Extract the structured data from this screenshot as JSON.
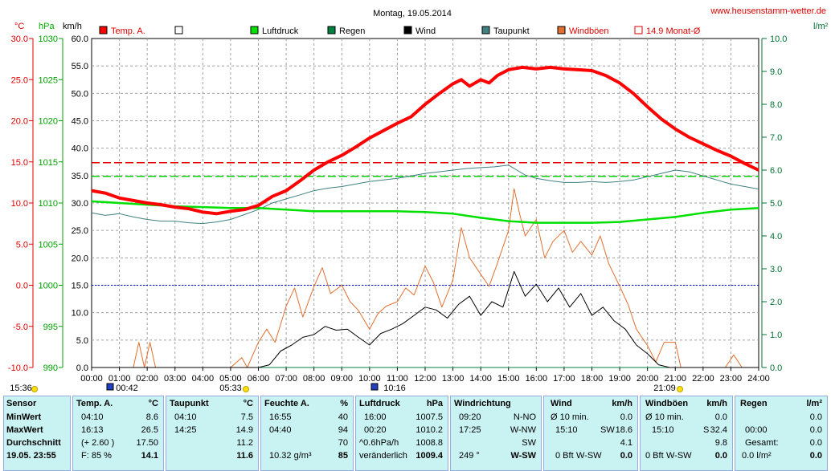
{
  "header": {
    "title": "Montag, 19.05.2014",
    "site": "www.heusenstamm-wetter.de"
  },
  "units": {
    "temp": "°C",
    "pressure": "hPa",
    "wind": "km/h",
    "rain": "l/m²"
  },
  "legend": [
    {
      "label": "Temp. A.",
      "color": "#ff0000"
    },
    {
      "label": "",
      "color": "#ffffff"
    },
    {
      "label": "Luftdruck",
      "color": "#00e000"
    },
    {
      "label": "Regen",
      "color": "#008040"
    },
    {
      "label": "Wind",
      "color": "#000000"
    },
    {
      "label": "Taupunkt",
      "color": "#408080"
    },
    {
      "label": "Windböen",
      "color": "#e07030"
    },
    {
      "label": "14.9 Monat-Ø",
      "color": "#e00000"
    }
  ],
  "time_marks": {
    "sunrise": "05:33",
    "sunset": "21:09",
    "left_time": "15:36",
    "moon1": "00:42",
    "moon2": "10:16"
  },
  "chart_data": {
    "type": "line",
    "x_label_ticks": [
      "00:00",
      "01:00",
      "02:00",
      "03:00",
      "04:00",
      "05:00",
      "06:00",
      "07:00",
      "08:00",
      "09:00",
      "10:00",
      "11:00",
      "12:00",
      "13:00",
      "14:00",
      "15:00",
      "16:00",
      "17:00",
      "18:00",
      "19:00",
      "20:00",
      "21:00",
      "22:00",
      "23:00",
      "24:00"
    ],
    "xlim": [
      0,
      24
    ],
    "axes": {
      "temp_ticks": [
        "30.0",
        "25.0",
        "20.0",
        "15.0",
        "10.0",
        "5.0",
        "0.0",
        "-5.0",
        "-10.0"
      ],
      "pressure_ticks": [
        "1030",
        "1025",
        "1020",
        "1015",
        "1010",
        "1005",
        "1000",
        "995",
        "990"
      ],
      "wind_ticks": [
        "60.0",
        "55.0",
        "50.0",
        "45.0",
        "40.0",
        "35.0",
        "30.0",
        "25.0",
        "20.0",
        "15.0",
        "10.0",
        "5.0",
        "0.0"
      ],
      "rain_ticks": [
        "10.0",
        "9.0",
        "8.0",
        "7.0",
        "6.0",
        "5.0",
        "4.0",
        "3.0",
        "2.0",
        "1.0",
        "0.0"
      ],
      "temp_ylim": [
        -10,
        30
      ],
      "pressure_ylim": [
        990,
        1030
      ],
      "wind_ylim": [
        0,
        60
      ],
      "rain_ylim": [
        0,
        10
      ]
    },
    "reference_lines": {
      "month_avg_temp": 14.9,
      "pressure_ref": 1013.25,
      "zero_temp": 0.0
    },
    "series": [
      {
        "name": "Temp. A.",
        "axis": "temp",
        "color": "#ff0000",
        "x": [
          0,
          0.5,
          1,
          1.5,
          2,
          2.5,
          3,
          3.5,
          4,
          4.5,
          5,
          5.5,
          6,
          6.5,
          7,
          7.5,
          8,
          8.5,
          9,
          9.5,
          10,
          10.5,
          11,
          11.5,
          12,
          12.5,
          13,
          13.3,
          13.6,
          14,
          14.3,
          14.6,
          15,
          15.5,
          16,
          16.5,
          17,
          17.5,
          18,
          18.5,
          19,
          19.5,
          20,
          20.5,
          21,
          21.5,
          22,
          22.5,
          23,
          23.5,
          24
        ],
        "y": [
          11.5,
          11.2,
          10.6,
          10.3,
          10.0,
          9.8,
          9.5,
          9.3,
          8.9,
          8.7,
          9.0,
          9.2,
          9.7,
          10.8,
          11.5,
          12.7,
          14.0,
          15.0,
          15.8,
          16.8,
          17.9,
          18.8,
          19.7,
          20.5,
          22.0,
          23.3,
          24.5,
          25.0,
          24.2,
          25.0,
          24.6,
          25.5,
          26.2,
          26.5,
          26.3,
          26.5,
          26.3,
          26.2,
          26.1,
          25.5,
          24.6,
          23.3,
          21.7,
          20.2,
          19.0,
          18.0,
          17.2,
          16.4,
          15.7,
          14.8,
          14.0
        ]
      },
      {
        "name": "Taupunkt",
        "axis": "temp",
        "color": "#408080",
        "x": [
          0,
          0.5,
          1,
          1.5,
          2,
          2.5,
          3,
          3.5,
          4,
          4.5,
          5,
          5.5,
          6,
          6.5,
          7,
          7.5,
          8,
          8.5,
          9,
          9.5,
          10,
          10.5,
          11,
          11.5,
          12,
          12.5,
          13,
          13.5,
          14,
          14.5,
          15,
          15.3,
          15.6,
          16,
          16.5,
          17,
          17.5,
          18,
          18.5,
          19,
          19.5,
          20,
          20.5,
          21,
          21.5,
          22,
          22.5,
          23,
          23.5,
          24
        ],
        "y": [
          8.8,
          8.5,
          8.7,
          8.3,
          8.0,
          7.8,
          7.8,
          7.6,
          7.5,
          7.7,
          8.0,
          8.6,
          9.2,
          10.0,
          10.5,
          11.0,
          11.5,
          11.8,
          12.0,
          12.3,
          12.6,
          12.8,
          13.0,
          13.3,
          13.6,
          13.8,
          14.0,
          14.2,
          14.3,
          14.4,
          14.6,
          14.0,
          13.4,
          13.0,
          12.7,
          12.5,
          12.5,
          12.6,
          12.5,
          12.6,
          12.8,
          13.2,
          13.6,
          14.0,
          13.8,
          13.3,
          12.8,
          12.3,
          12.0,
          11.7
        ]
      },
      {
        "name": "Luftdruck",
        "axis": "pressure",
        "color": "#00e000",
        "x": [
          0,
          1,
          2,
          3,
          4,
          5,
          6,
          7,
          8,
          9,
          10,
          11,
          12,
          13,
          14,
          15,
          16,
          17,
          18,
          19,
          20,
          21,
          22,
          23,
          24
        ],
        "y": [
          1010.2,
          1010.0,
          1009.8,
          1009.6,
          1009.5,
          1009.4,
          1009.4,
          1009.2,
          1009.0,
          1009.0,
          1009.0,
          1009.0,
          1008.9,
          1008.7,
          1008.2,
          1007.8,
          1007.6,
          1007.6,
          1007.6,
          1007.7,
          1008.0,
          1008.3,
          1008.8,
          1009.2,
          1009.4
        ]
      },
      {
        "name": "Windböen",
        "axis": "wind",
        "color": "#e07030",
        "x": [
          0,
          1,
          1.5,
          1.7,
          1.9,
          2.1,
          2.3,
          2.5,
          5,
          5.4,
          5.6,
          6,
          6.3,
          6.6,
          7,
          7.3,
          7.6,
          8,
          8.3,
          8.6,
          9,
          9.3,
          9.6,
          10,
          10.3,
          10.6,
          11,
          11.3,
          11.6,
          12,
          12.3,
          12.6,
          13,
          13.3,
          13.6,
          14,
          14.3,
          14.6,
          15,
          15.2,
          15.4,
          15.6,
          16,
          16.3,
          16.6,
          17,
          17.3,
          17.6,
          18,
          18.3,
          18.6,
          19,
          19.3,
          19.6,
          20,
          20.3,
          20.6,
          21,
          21.2,
          21.4,
          22,
          22.8,
          23.1,
          23.4,
          24
        ],
        "y": [
          0,
          0,
          0,
          4.6,
          0,
          4.6,
          0,
          0,
          0,
          1.8,
          0,
          4.6,
          7.0,
          4.6,
          11.2,
          14.5,
          9.2,
          14.8,
          18.2,
          13.5,
          15.0,
          12.0,
          10.4,
          7.0,
          9.8,
          11.2,
          12.0,
          14.5,
          13.2,
          18.5,
          15.5,
          11.0,
          16.0,
          25.5,
          20.0,
          17.0,
          14.8,
          19.0,
          25.0,
          32.6,
          28.0,
          24.0,
          27.0,
          20.0,
          23.0,
          25.0,
          21.0,
          23.0,
          20.5,
          24.0,
          19.0,
          14.8,
          11.5,
          7.0,
          4.0,
          1.0,
          4.6,
          4.6,
          0,
          0,
          0,
          0,
          2.3,
          0,
          0
        ]
      },
      {
        "name": "Wind",
        "axis": "wind",
        "color": "#000000",
        "x": [
          0,
          6,
          6.4,
          6.8,
          7.2,
          7.6,
          8,
          8.4,
          8.8,
          9.2,
          9.6,
          10,
          10.4,
          10.8,
          11.2,
          11.6,
          12,
          12.4,
          12.8,
          13.2,
          13.6,
          14,
          14.4,
          14.8,
          15.2,
          15.6,
          16,
          16.4,
          16.8,
          17.2,
          17.6,
          18,
          18.4,
          18.8,
          19.2,
          19.6,
          20,
          20.4,
          20.8,
          21.2,
          24
        ],
        "y": [
          0,
          0,
          0.5,
          3.0,
          4.1,
          5.5,
          6.0,
          7.5,
          6.8,
          7.0,
          5.5,
          4.1,
          6.2,
          7.0,
          8.0,
          9.5,
          11.0,
          10.5,
          9.0,
          11.5,
          13.0,
          9.5,
          12.0,
          11.0,
          17.5,
          13.0,
          15.2,
          12.0,
          14.5,
          11.0,
          13.5,
          9.5,
          11.0,
          8.5,
          7.0,
          4.1,
          2.5,
          0.5,
          0,
          0,
          0
        ]
      },
      {
        "name": "Regen",
        "axis": "rain",
        "color": "#008040",
        "x": [
          0,
          24
        ],
        "y": [
          0,
          0
        ]
      }
    ]
  },
  "summary": {
    "sensor": {
      "title": "Sensor",
      "rows": [
        "MinWert",
        "MaxWert",
        "Durchschnitt",
        "19.05. 23:55"
      ]
    },
    "temp": {
      "title": "Temp. A.",
      "unit": "°C",
      "rows": [
        [
          "04:10",
          "8.6"
        ],
        [
          "16:13",
          "26.5"
        ],
        [
          "(+ 2.60 )",
          "17.50"
        ],
        [
          "F: 85 %",
          "14.1"
        ]
      ]
    },
    "taupunkt": {
      "title": "Taupunkt",
      "unit": "°C",
      "rows": [
        [
          "04:10",
          "7.5"
        ],
        [
          "14:25",
          "14.9"
        ],
        [
          "",
          "11.2"
        ],
        [
          "",
          "11.6"
        ]
      ]
    },
    "feuchte": {
      "title": "Feuchte A.",
      "unit": "%",
      "rows": [
        [
          "16:55",
          "40"
        ],
        [
          "04:40",
          "94"
        ],
        [
          "",
          "70"
        ],
        [
          "10.32 g/m³",
          "85"
        ]
      ]
    },
    "luftdruck": {
      "title": "Luftdruck",
      "unit": "hPa",
      "rows": [
        [
          "16:00",
          "1007.5"
        ],
        [
          "00:20",
          "1010.2"
        ],
        [
          "^0.6hPa/h",
          "1008.8"
        ],
        [
          "veränderlich",
          "1009.4"
        ]
      ]
    },
    "windrichtung": {
      "title": "Windrichtung",
      "rows": [
        [
          "09:20",
          "N-NO"
        ],
        [
          "17:25",
          "W-NW"
        ],
        [
          "",
          "SW"
        ],
        [
          "249 °",
          "W-SW"
        ]
      ]
    },
    "wind": {
      "title": "Wind",
      "unit": "km/h",
      "rows": [
        [
          "Ø 10 min.",
          "",
          "0.0"
        ],
        [
          "15:10",
          "SW",
          "18.6"
        ],
        [
          "",
          "",
          "4.1"
        ],
        [
          "0 Bft",
          "W-SW",
          "0.0"
        ]
      ]
    },
    "windboeen": {
      "title": "Windböen",
      "unit": "km/h",
      "rows": [
        [
          "Ø 10 min.",
          "",
          "0.0"
        ],
        [
          "15:10",
          "S",
          "32.4"
        ],
        [
          "",
          "",
          "9.8"
        ],
        [
          "0 Bft",
          "W-SW",
          "0.0"
        ]
      ]
    },
    "regen": {
      "title": "Regen",
      "unit": "l/m²",
      "rows": [
        [
          "",
          "0.0"
        ],
        [
          "00:00",
          "0.0"
        ],
        [
          "Gesamt:",
          "0.0"
        ],
        [
          "0.0 l/m²",
          "0.0"
        ]
      ]
    }
  }
}
